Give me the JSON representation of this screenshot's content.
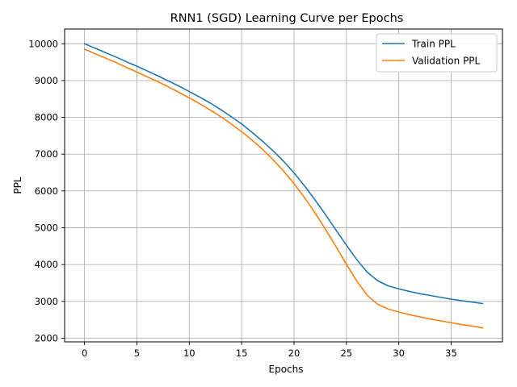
{
  "chart_data": {
    "type": "line",
    "title": "RNN1 (SGD) Learning Curve per Epochs",
    "xlabel": "Epochs",
    "ylabel": "PPL",
    "xlim": [
      -1.9,
      39.9
    ],
    "ylim": [
      1900,
      10400
    ],
    "xticks": [
      0,
      5,
      10,
      15,
      20,
      25,
      30,
      35
    ],
    "yticks": [
      2000,
      3000,
      4000,
      5000,
      6000,
      7000,
      8000,
      9000,
      10000
    ],
    "grid": true,
    "legend_position": "top-right",
    "x": [
      0,
      1,
      2,
      3,
      4,
      5,
      6,
      7,
      8,
      9,
      10,
      11,
      12,
      13,
      14,
      15,
      16,
      17,
      18,
      19,
      20,
      21,
      22,
      23,
      24,
      25,
      26,
      27,
      28,
      29,
      30,
      31,
      32,
      33,
      34,
      35,
      36,
      37,
      38
    ],
    "series": [
      {
        "name": "Train PPL",
        "color": "#1f77b4",
        "values": [
          10000,
          9880,
          9760,
          9640,
          9510,
          9390,
          9260,
          9130,
          8990,
          8850,
          8700,
          8550,
          8390,
          8210,
          8020,
          7820,
          7590,
          7350,
          7090,
          6810,
          6490,
          6140,
          5760,
          5360,
          4940,
          4530,
          4130,
          3790,
          3560,
          3420,
          3340,
          3270,
          3210,
          3160,
          3110,
          3060,
          3020,
          2980,
          2940
        ]
      },
      {
        "name": "Validation PPL",
        "color": "#ff7f0e",
        "values": [
          9850,
          9730,
          9610,
          9490,
          9360,
          9230,
          9100,
          8970,
          8830,
          8680,
          8530,
          8370,
          8200,
          8020,
          7820,
          7610,
          7380,
          7130,
          6850,
          6540,
          6200,
          5820,
          5410,
          4960,
          4490,
          4010,
          3550,
          3160,
          2920,
          2790,
          2710,
          2640,
          2580,
          2520,
          2470,
          2420,
          2370,
          2330,
          2280
        ]
      }
    ]
  }
}
